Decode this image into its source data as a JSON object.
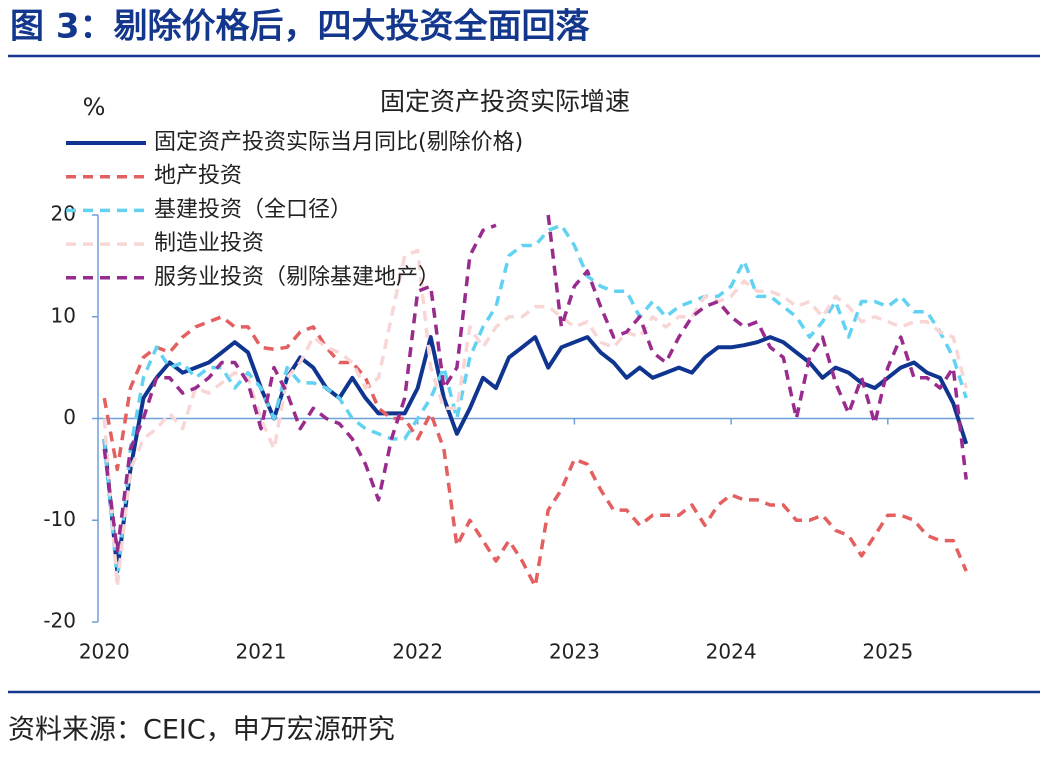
{
  "header": {
    "title": "图 3：剔除价格后，四大投资全面回落"
  },
  "source": "资料来源：CEIC，申万宏源研究",
  "chart_data": {
    "type": "line",
    "title": "固定资产投资实际增速",
    "y_label": "%",
    "x": [
      2020,
      2020.083,
      2020.167,
      2020.25,
      2020.333,
      2020.417,
      2020.5,
      2020.583,
      2020.667,
      2020.75,
      2020.833,
      2020.917,
      2021,
      2021.083,
      2021.167,
      2021.25,
      2021.333,
      2021.417,
      2021.5,
      2021.583,
      2021.667,
      2021.75,
      2021.833,
      2021.917,
      2022,
      2022.083,
      2022.167,
      2022.25,
      2022.333,
      2022.417,
      2022.5,
      2022.583,
      2022.667,
      2022.75,
      2022.833,
      2022.917,
      2023,
      2023.083,
      2023.167,
      2023.25,
      2023.333,
      2023.417,
      2023.5,
      2023.583,
      2023.667,
      2023.75,
      2023.833,
      2023.917,
      2024,
      2024.083,
      2024.167,
      2024.25,
      2024.333,
      2024.417,
      2024.5,
      2024.583,
      2024.667,
      2024.75,
      2024.833,
      2024.917,
      2025,
      2025.083,
      2025.167,
      2025.25,
      2025.333,
      2025.417,
      2025.5
    ],
    "xlim": [
      2019.96,
      2025.55
    ],
    "xticks": [
      2020,
      2021,
      2022,
      2023,
      2024,
      2025
    ],
    "ylim": [
      -20,
      20
    ],
    "yticks": [
      -20,
      -10,
      0,
      10,
      20
    ],
    "grid": false,
    "series": [
      {
        "name": "固定资产投资实际当月同比(剔除价格)",
        "color": "#0f3590",
        "dash": "none",
        "width": 4,
        "values": [
          -2,
          -15,
          -5,
          2,
          4,
          5.5,
          4.5,
          5,
          5.5,
          6.5,
          7.5,
          6.5,
          3,
          0,
          4,
          6,
          5,
          3,
          2,
          4,
          2,
          0.5,
          0.5,
          0.5,
          3,
          8,
          2,
          -1.5,
          1,
          4,
          3,
          6,
          7,
          8,
          5,
          7,
          7.5,
          8,
          6.5,
          5.5,
          4,
          5,
          4,
          4.5,
          5,
          4.5,
          6,
          7,
          7,
          7.2,
          7.5,
          8,
          7.5,
          6.5,
          5.5,
          4,
          5,
          4.5,
          3.5,
          3,
          4,
          5,
          5.5,
          4.5,
          4,
          1.5,
          -2.5
        ]
      },
      {
        "name": "地产投资",
        "color": "#e45f5f",
        "dash": "10 7",
        "width": 3.5,
        "values": [
          2,
          -5,
          3,
          6,
          7,
          6.5,
          8,
          9,
          9.5,
          10,
          9,
          9,
          7,
          6.8,
          7,
          8.5,
          9,
          7,
          5.5,
          5.5,
          4,
          1,
          0,
          0,
          -2,
          0.5,
          -3,
          -12.5,
          -10,
          -12,
          -14,
          -12,
          -14,
          -16.5,
          -9,
          -7,
          -4,
          -4.5,
          -7,
          -9,
          -9,
          -10.5,
          -9.5,
          -9.5,
          -9.5,
          -8.5,
          -10.5,
          -8.5,
          -7.5,
          -8,
          -8,
          -8.5,
          -8.5,
          -10,
          -10,
          -9.5,
          -11,
          -11.5,
          -13.5,
          -11.5,
          -9.5,
          -9.5,
          -10,
          -11.5,
          -12,
          -12,
          -15
        ]
      },
      {
        "name": "基建投资（全口径）",
        "color": "#62d2f2",
        "dash": "10 7",
        "width": 3.5,
        "values": [
          -2,
          -16,
          -3,
          4,
          7,
          5,
          5.5,
          4,
          5,
          5,
          3,
          4.5,
          3,
          0,
          5,
          3.5,
          3.5,
          3,
          2,
          0,
          -1,
          -1.5,
          -2,
          -2,
          0,
          2,
          5,
          0,
          6,
          9,
          11,
          16,
          17,
          17,
          18.5,
          19,
          17,
          14,
          13,
          12.5,
          12.5,
          10,
          11.5,
          10,
          11,
          11.5,
          12,
          12,
          13,
          15.5,
          12,
          12,
          11,
          10,
          8,
          9.5,
          11.5,
          8,
          11.5,
          11.5,
          11,
          12,
          10.5,
          10.5,
          8.5,
          6,
          2
        ]
      },
      {
        "name": "制造业投资",
        "color": "#f9d6d6",
        "dash": "10 7",
        "width": 3.5,
        "values": [
          0,
          -16.5,
          -5,
          -2,
          -1,
          0.5,
          -1,
          3,
          2.5,
          3.5,
          4.5,
          4,
          0,
          -3,
          4,
          5.5,
          8,
          7,
          6.5,
          5.5,
          3,
          4,
          10,
          16,
          16.5,
          5,
          1,
          1,
          9,
          7,
          9,
          10,
          10,
          11,
          11,
          10,
          9,
          9.5,
          7.5,
          7,
          8.5,
          8,
          10,
          9,
          10,
          10,
          12,
          11.5,
          12,
          13.5,
          12.5,
          12.5,
          12,
          11,
          11.5,
          10,
          12,
          11,
          9.5,
          10,
          9.5,
          9,
          9.5,
          9.5,
          8.5,
          8,
          3
        ]
      },
      {
        "name": "服务业投资（剔除基建地产）",
        "color": "#9a2b8e",
        "dash": "10 7",
        "width": 3.5,
        "values": [
          -3,
          -13,
          -3,
          0,
          4,
          4,
          2.5,
          3,
          4,
          5.5,
          5.5,
          3.5,
          -1,
          5,
          2.5,
          -1,
          1,
          0,
          -0.5,
          -2,
          -4.5,
          -8,
          -2,
          2,
          12.5,
          13,
          3,
          5,
          16,
          18.5,
          19,
          null,
          null,
          null,
          20,
          9,
          13,
          14.5,
          11,
          8,
          8.5,
          10,
          6.5,
          5.5,
          8,
          10,
          11,
          11.5,
          10,
          9,
          9.5,
          7,
          6,
          0,
          6,
          8,
          3.5,
          0.5,
          4,
          -0.5,
          5,
          8,
          4,
          4,
          3,
          5,
          -6
        ]
      }
    ]
  }
}
